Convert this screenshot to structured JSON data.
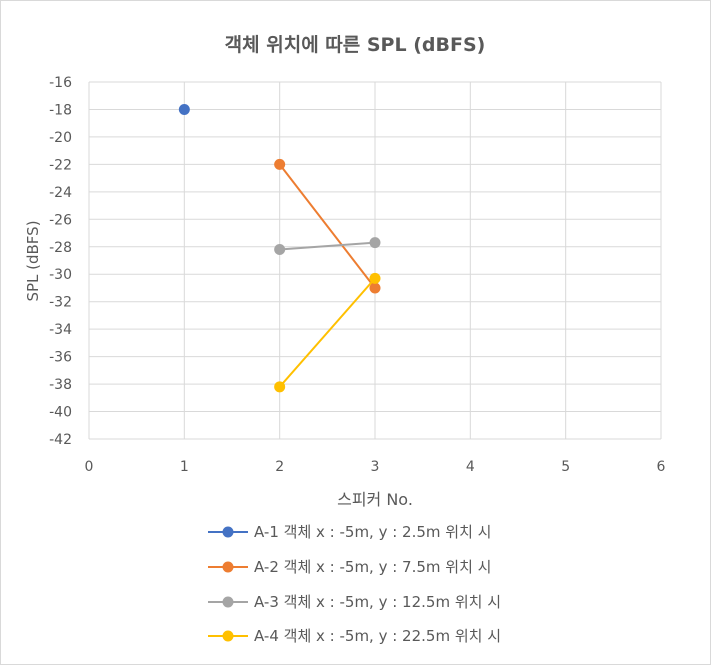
{
  "chart_data": {
    "type": "line",
    "title": "객체 위치에 따른 SPL (dBFS)",
    "xlabel": "스피커 No.",
    "ylabel": "SPL (dBFS)",
    "xlim": [
      0,
      6
    ],
    "ylim": [
      -42,
      -16
    ],
    "x_ticks": [
      "0",
      "1",
      "2",
      "3",
      "4",
      "5",
      "6"
    ],
    "y_ticks": [
      "-16",
      "-18",
      "-20",
      "-22",
      "-24",
      "-26",
      "-28",
      "-30",
      "-32",
      "-34",
      "-36",
      "-38",
      "-40",
      "-42"
    ],
    "grid": true,
    "legend_position": "bottom",
    "series": [
      {
        "name": "A-1 객체 x : -5m, y : 2.5m 위치 시",
        "color": "#4472C4",
        "points": [
          [
            1,
            -18
          ]
        ]
      },
      {
        "name": "A-2 객체 x : -5m, y : 7.5m 위치 시",
        "color": "#ED7D31",
        "points": [
          [
            2,
            -22
          ],
          [
            3,
            -31
          ]
        ]
      },
      {
        "name": "A-3 객체 x : -5m, y : 12.5m 위치 시",
        "color": "#A5A5A5",
        "points": [
          [
            2,
            -28.2
          ],
          [
            3,
            -27.7
          ]
        ]
      },
      {
        "name": "A-4 객체 x : -5m, y : 22.5m 위치 시",
        "color": "#FFC000",
        "points": [
          [
            2,
            -38.2
          ],
          [
            3,
            -30.3
          ]
        ]
      }
    ]
  }
}
